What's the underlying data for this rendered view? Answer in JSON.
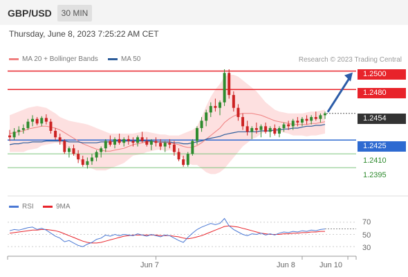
{
  "header": {
    "symbol": "GBP/USD",
    "timeframe": "30 MIN"
  },
  "timestamp": "Thursday, June 8, 2023 7:25:22 AM CET",
  "legend": [
    {
      "label": "MA 20 + Bollinger Bands",
      "color": "#f08080"
    },
    {
      "label": "MA 50",
      "color": "#2c5c9a"
    }
  ],
  "source": "Research © 2023 Trading Central",
  "levels": [
    {
      "label": "1.2500",
      "value": 1.25,
      "style": "red"
    },
    {
      "label": "1.2480",
      "value": 1.248,
      "style": "red"
    },
    {
      "label": "1.2454",
      "value": 1.2454,
      "style": "dark"
    },
    {
      "label": "1.2425",
      "value": 1.2425,
      "style": "blue"
    },
    {
      "label": "1.2410",
      "value": 1.241,
      "style": "green"
    },
    {
      "label": "1.2395",
      "value": 1.2395,
      "style": "green"
    }
  ],
  "rsi_legend": [
    {
      "label": "RSI",
      "color": "#4a78d4"
    },
    {
      "label": "9MA",
      "color": "#e8232a"
    }
  ],
  "rsi_ticks": [
    "70",
    "50",
    "30"
  ],
  "x_labels": [
    "Jun 7",
    "Jun 8",
    "Jun 10"
  ],
  "colors": {
    "up": "#2e8b2e",
    "down": "#cc2222",
    "band": "#fde0e0",
    "ma50": "#2c5c9a",
    "ma20": "#f08080"
  },
  "chart_data": {
    "type": "candlestick",
    "ylim": [
      1.238,
      1.2505
    ],
    "rsi_ylim": [
      20,
      80
    ],
    "x_ticks": [
      {
        "label": "Jun 7",
        "index": 32
      },
      {
        "label": "Jun 8",
        "index": 64
      },
      {
        "label": "Jun 10",
        "index": 74
      }
    ],
    "candles": [
      [
        1.243,
        1.2436,
        1.2424,
        1.2428
      ],
      [
        1.2428,
        1.2438,
        1.2425,
        1.2434
      ],
      [
        1.2434,
        1.244,
        1.243,
        1.2436
      ],
      [
        1.2436,
        1.2442,
        1.2432,
        1.2438
      ],
      [
        1.2438,
        1.2448,
        1.2436,
        1.2445
      ],
      [
        1.2445,
        1.2452,
        1.244,
        1.2448
      ],
      [
        1.2448,
        1.245,
        1.2441,
        1.2443
      ],
      [
        1.2443,
        1.2451,
        1.244,
        1.2449
      ],
      [
        1.2449,
        1.2453,
        1.2442,
        1.2445
      ],
      [
        1.2445,
        1.2448,
        1.2432,
        1.2435
      ],
      [
        1.2435,
        1.2438,
        1.2425,
        1.2428
      ],
      [
        1.2428,
        1.2432,
        1.242,
        1.2424
      ],
      [
        1.2424,
        1.2426,
        1.241,
        1.2412
      ],
      [
        1.2412,
        1.2418,
        1.2406,
        1.2416
      ],
      [
        1.2416,
        1.242,
        1.2408,
        1.241
      ],
      [
        1.241,
        1.2414,
        1.24,
        1.2404
      ],
      [
        1.2404,
        1.2408,
        1.2396,
        1.2398
      ],
      [
        1.2398,
        1.2406,
        1.2394,
        1.2402
      ],
      [
        1.2402,
        1.241,
        1.2398,
        1.2406
      ],
      [
        1.2406,
        1.2414,
        1.2402,
        1.2412
      ],
      [
        1.2412,
        1.2418,
        1.2406,
        1.2416
      ],
      [
        1.2416,
        1.2426,
        1.2412,
        1.2424
      ],
      [
        1.2424,
        1.243,
        1.2418,
        1.242
      ],
      [
        1.242,
        1.2428,
        1.2416,
        1.2426
      ],
      [
        1.2426,
        1.2432,
        1.242,
        1.2422
      ],
      [
        1.2422,
        1.2428,
        1.2418,
        1.2426
      ],
      [
        1.2426,
        1.243,
        1.242,
        1.2424
      ],
      [
        1.2424,
        1.2428,
        1.2418,
        1.2422
      ],
      [
        1.2422,
        1.243,
        1.2418,
        1.2428
      ],
      [
        1.2428,
        1.2434,
        1.2422,
        1.2424
      ],
      [
        1.2424,
        1.2428,
        1.2418,
        1.242
      ],
      [
        1.242,
        1.2426,
        1.2414,
        1.2424
      ],
      [
        1.2424,
        1.2428,
        1.2418,
        1.2422
      ],
      [
        1.2422,
        1.2426,
        1.2414,
        1.2418
      ],
      [
        1.2418,
        1.2424,
        1.2412,
        1.2422
      ],
      [
        1.2422,
        1.2426,
        1.2416,
        1.242
      ],
      [
        1.242,
        1.2424,
        1.2408,
        1.2412
      ],
      [
        1.2412,
        1.2416,
        1.2402,
        1.2404
      ],
      [
        1.2404,
        1.2408,
        1.2396,
        1.2398
      ],
      [
        1.2398,
        1.2412,
        1.2396,
        1.241
      ],
      [
        1.241,
        1.2426,
        1.2408,
        1.2424
      ],
      [
        1.2424,
        1.244,
        1.242,
        1.2438
      ],
      [
        1.2438,
        1.245,
        1.2434,
        1.2446
      ],
      [
        1.2446,
        1.2458,
        1.244,
        1.2455
      ],
      [
        1.2455,
        1.2466,
        1.245,
        1.2462
      ],
      [
        1.2462,
        1.247,
        1.2456,
        1.246
      ],
      [
        1.246,
        1.2468,
        1.2452,
        1.2466
      ],
      [
        1.2466,
        1.2502,
        1.2462,
        1.2498
      ],
      [
        1.2498,
        1.2502,
        1.247,
        1.2474
      ],
      [
        1.2474,
        1.2478,
        1.2456,
        1.246
      ],
      [
        1.246,
        1.2464,
        1.2446,
        1.245
      ],
      [
        1.245,
        1.2454,
        1.2436,
        1.244
      ],
      [
        1.244,
        1.2446,
        1.243,
        1.2434
      ],
      [
        1.2434,
        1.244,
        1.2426,
        1.2438
      ],
      [
        1.2438,
        1.2444,
        1.2432,
        1.2436
      ],
      [
        1.2436,
        1.2442,
        1.2428,
        1.244
      ],
      [
        1.244,
        1.2444,
        1.2432,
        1.2434
      ],
      [
        1.2434,
        1.244,
        1.2428,
        1.2438
      ],
      [
        1.2438,
        1.2442,
        1.243,
        1.2432
      ],
      [
        1.2432,
        1.244,
        1.2428,
        1.2438
      ],
      [
        1.2438,
        1.2444,
        1.2434,
        1.2442
      ],
      [
        1.2442,
        1.2446,
        1.2436,
        1.244
      ],
      [
        1.244,
        1.2448,
        1.2436,
        1.2446
      ],
      [
        1.2446,
        1.245,
        1.244,
        1.2444
      ],
      [
        1.2444,
        1.245,
        1.244,
        1.2448
      ],
      [
        1.2448,
        1.2452,
        1.2442,
        1.2446
      ],
      [
        1.2446,
        1.2452,
        1.2442,
        1.245
      ],
      [
        1.245,
        1.2456,
        1.2446,
        1.2448
      ],
      [
        1.2448,
        1.2454,
        1.2444,
        1.2452
      ],
      [
        1.2452,
        1.2456,
        1.2448,
        1.2454
      ]
    ],
    "ma50": [
      1.242,
      1.2421,
      1.2421,
      1.2422,
      1.2422,
      1.2423,
      1.2423,
      1.2423,
      1.2424,
      1.2424,
      1.2424,
      1.2424,
      1.2424,
      1.2423,
      1.2423,
      1.2423,
      1.2422,
      1.2422,
      1.2422,
      1.2422,
      1.2423,
      1.2423,
      1.2423,
      1.2424,
      1.2424,
      1.2424,
      1.2424,
      1.2424,
      1.2424,
      1.2424,
      1.2424,
      1.2424,
      1.2423,
      1.2423,
      1.2423,
      1.2423,
      1.2422,
      1.2422,
      1.2421,
      1.2421,
      1.2422,
      1.2423,
      1.2424,
      1.2426,
      1.2427,
      1.2428,
      1.2429,
      1.2431,
      1.2432,
      1.2433,
      1.2434,
      1.2434,
      1.2434,
      1.2434,
      1.2434,
      1.2435,
      1.2435,
      1.2435,
      1.2436,
      1.2436,
      1.2437,
      1.2437,
      1.2438,
      1.2438,
      1.2439,
      1.244,
      1.244,
      1.2441,
      1.2441,
      1.2442
    ],
    "ma20": [
      1.2432,
      1.2433,
      1.2434,
      1.2435,
      1.2437,
      1.2438,
      1.2439,
      1.244,
      1.244,
      1.2439,
      1.2438,
      1.2436,
      1.2433,
      1.243,
      1.2427,
      1.2424,
      1.2421,
      1.2419,
      1.2417,
      1.2415,
      1.2414,
      1.2413,
      1.2413,
      1.2414,
      1.2415,
      1.2416,
      1.2418,
      1.242,
      1.2421,
      1.2422,
      1.2423,
      1.2423,
      1.2423,
      1.2423,
      1.2422,
      1.2422,
      1.2421,
      1.242,
      1.2418,
      1.2417,
      1.2417,
      1.2419,
      1.2422,
      1.2426,
      1.243,
      1.2434,
      1.2438,
      1.2444,
      1.2448,
      1.2451,
      1.2453,
      1.2454,
      1.2454,
      1.2454,
      1.2453,
      1.2452,
      1.245,
      1.2448,
      1.2446,
      1.2445,
      1.2444,
      1.2443,
      1.2442,
      1.2442,
      1.2442,
      1.2442,
      1.2443,
      1.2443,
      1.2444,
      1.2445
    ],
    "band_upper": [
      1.2452,
      1.2454,
      1.2456,
      1.2458,
      1.246,
      1.2461,
      1.2462,
      1.2461,
      1.246,
      1.2457,
      1.2454,
      1.245,
      1.2448,
      1.2446,
      1.2445,
      1.2444,
      1.2443,
      1.2442,
      1.244,
      1.2438,
      1.2436,
      1.2434,
      1.2432,
      1.2432,
      1.2432,
      1.2432,
      1.2432,
      1.2432,
      1.2433,
      1.2434,
      1.2434,
      1.2433,
      1.2432,
      1.2431,
      1.2431,
      1.243,
      1.243,
      1.243,
      1.2432,
      1.2434,
      1.2436,
      1.244,
      1.245,
      1.2462,
      1.2472,
      1.248,
      1.2486,
      1.2494,
      1.2496,
      1.2496,
      1.2494,
      1.249,
      1.2486,
      1.2482,
      1.2478,
      1.2472,
      1.2466,
      1.2462,
      1.2458,
      1.2456,
      1.2455,
      1.2454,
      1.2454,
      1.2454,
      1.2454,
      1.2455,
      1.2456,
      1.2456,
      1.2457,
      1.2458
    ],
    "band_lower": [
      1.2412,
      1.2412,
      1.2412,
      1.2412,
      1.2414,
      1.2415,
      1.2416,
      1.2419,
      1.242,
      1.2421,
      1.2422,
      1.2422,
      1.2418,
      1.2414,
      1.2409,
      1.2404,
      1.2399,
      1.2396,
      1.2394,
      1.2392,
      1.2392,
      1.2392,
      1.2394,
      1.2396,
      1.2398,
      1.24,
      1.2404,
      1.2408,
      1.2409,
      1.241,
      1.2412,
      1.2413,
      1.2414,
      1.2415,
      1.2413,
      1.2414,
      1.2412,
      1.241,
      1.2404,
      1.24,
      1.2398,
      1.2398,
      1.2394,
      1.239,
      1.2388,
      1.2388,
      1.239,
      1.2394,
      1.24,
      1.2406,
      1.2412,
      1.2418,
      1.2422,
      1.2426,
      1.2428,
      1.2432,
      1.2434,
      1.2434,
      1.2434,
      1.2434,
      1.2433,
      1.2432,
      1.243,
      1.243,
      1.243,
      1.2429,
      1.243,
      1.243,
      1.2431,
      1.2432
    ],
    "rsi": [
      56,
      58,
      57,
      59,
      61,
      62,
      58,
      60,
      57,
      52,
      47,
      44,
      38,
      40,
      36,
      32,
      30,
      34,
      37,
      42,
      44,
      49,
      47,
      50,
      48,
      50,
      49,
      48,
      51,
      49,
      47,
      50,
      48,
      46,
      49,
      48,
      44,
      40,
      37,
      45,
      52,
      58,
      62,
      65,
      68,
      66,
      68,
      76,
      64,
      58,
      54,
      50,
      48,
      51,
      50,
      52,
      49,
      51,
      49,
      52,
      54,
      53,
      55,
      54,
      56,
      55,
      57,
      56,
      58,
      59
    ],
    "rsi_ma": [
      52,
      53,
      54,
      55,
      56,
      57,
      57,
      58,
      58,
      57,
      56,
      54,
      51,
      48,
      45,
      42,
      39,
      37,
      36,
      36,
      37,
      39,
      41,
      43,
      45,
      47,
      48,
      49,
      49,
      49,
      49,
      49,
      49,
      48,
      48,
      48,
      47,
      46,
      44,
      43,
      44,
      46,
      48,
      51,
      54,
      57,
      60,
      63,
      64,
      63,
      62,
      60,
      58,
      56,
      54,
      52,
      51,
      50,
      50,
      50,
      51,
      51,
      52,
      52,
      53,
      53,
      54,
      54,
      55,
      55
    ]
  }
}
